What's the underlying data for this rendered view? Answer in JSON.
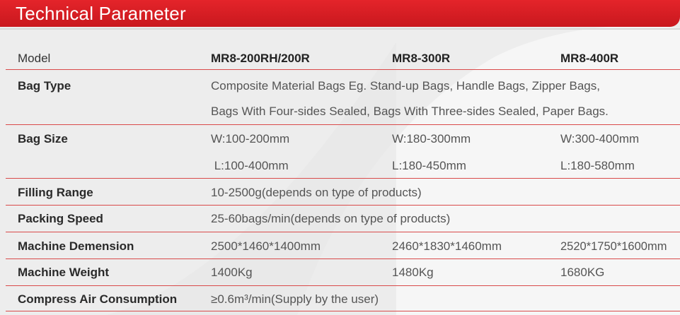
{
  "header": {
    "title": "Technical Parameter"
  },
  "table": {
    "columns": [
      "MR8-200RH/200R",
      "MR8-300R",
      "MR8-400R"
    ],
    "model_label": "Model",
    "rows": {
      "bag_type": {
        "label": "Bag Type",
        "line1": "Composite Material Bags Eg. Stand-up Bags, Handle Bags, Zipper Bags,",
        "line2": "Bags With Four-sides Sealed, Bags With Three-sides Sealed, Paper Bags."
      },
      "bag_size": {
        "label": "Bag Size",
        "w": [
          "W:100-200mm",
          "W:180-300mm",
          "W:300-400mm"
        ],
        "l": [
          " L:100-400mm",
          "L:180-450mm",
          "L:180-580mm"
        ]
      },
      "filling_range": {
        "label": "Filling Range",
        "value": "10-2500g(depends on type of products)"
      },
      "packing_speed": {
        "label": "Packing Speed",
        "value": "25-60bags/min(depends on type of products)"
      },
      "machine_dimension": {
        "label": "Machine Demension",
        "values": [
          "2500*1460*1400mm",
          "2460*1830*1460mm",
          "2520*1750*1600mm"
        ]
      },
      "machine_weight": {
        "label": "Machine Weight",
        "values": [
          "1400Kg",
          "1480Kg",
          "1680KG"
        ]
      },
      "air_consumption": {
        "label": "Compress Air Consumption",
        "value": "≥0.6m³/min(Supply by the user)"
      }
    }
  }
}
